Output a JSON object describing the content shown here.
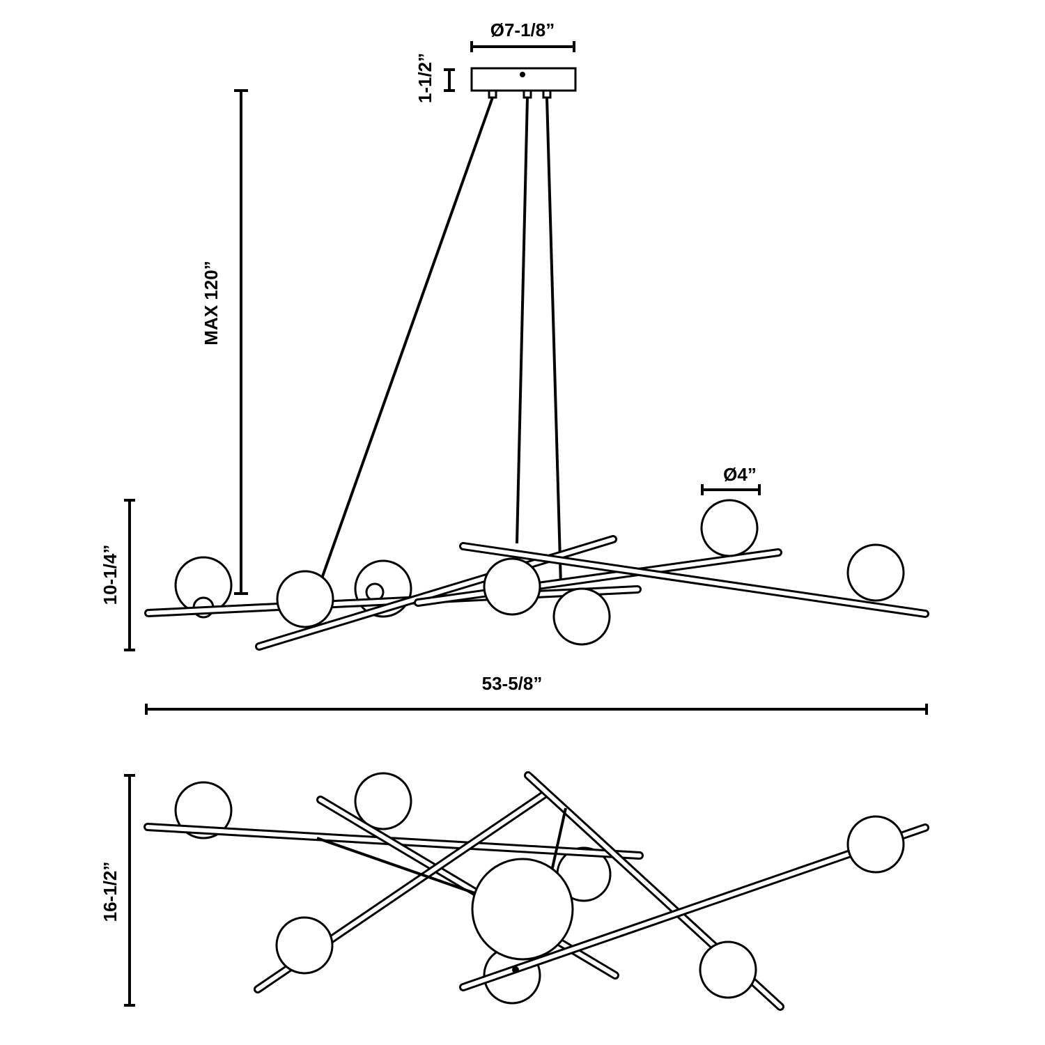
{
  "dimensions": {
    "canopy_diameter": "Ø7-1/8”",
    "canopy_height": "1-1/2”",
    "max_height": "MAX 120”",
    "globe_diameter": "Ø4”",
    "fixture_height": "10-1/4”",
    "fixture_width": "53-5/8”",
    "fixture_depth": "16-1/2”"
  }
}
